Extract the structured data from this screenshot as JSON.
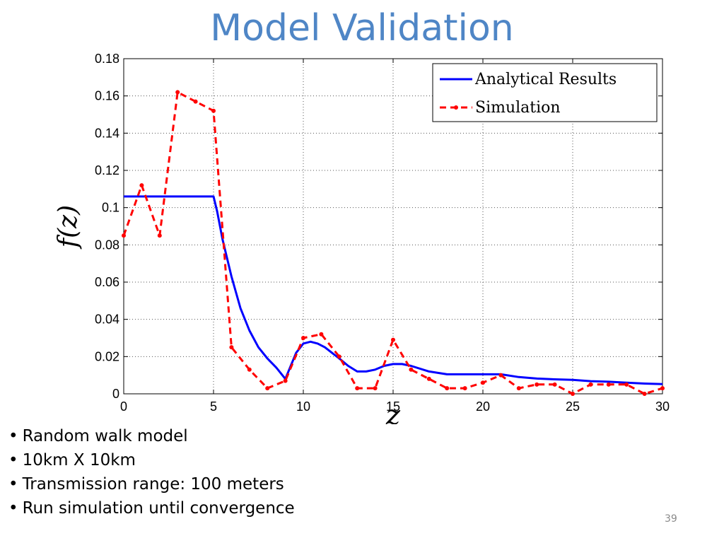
{
  "slide": {
    "title": "Model Validation",
    "bullets": [
      "Random walk model",
      "10km X 10km",
      "Transmission range: 100 meters",
      "Run simulation until convergence"
    ],
    "page_number": "39"
  },
  "colors": {
    "title": "#4f86c6",
    "analytical": "#0000ff",
    "simulation": "#ff0000"
  },
  "chart_data": {
    "type": "line",
    "xlabel": "z",
    "ylabel": "f(z)",
    "xlim": [
      0,
      30
    ],
    "ylim": [
      0,
      0.18
    ],
    "xticks": [
      0,
      5,
      10,
      15,
      20,
      25,
      30
    ],
    "yticks": [
      0,
      0.02,
      0.04,
      0.06,
      0.08,
      0.1,
      0.12,
      0.14,
      0.16,
      0.18
    ],
    "xtick_labels": [
      "0",
      "5",
      "10",
      "15",
      "20",
      "25",
      "30"
    ],
    "ytick_labels": [
      "0",
      "0.02",
      "0.04",
      "0.06",
      "0.08",
      "0.1",
      "0.12",
      "0.14",
      "0.16",
      "0.18"
    ],
    "grid": true,
    "legend_position": "top-right",
    "series": [
      {
        "name": "Analytical Results",
        "style": "solid",
        "x": [
          0,
          5,
          5.2,
          5.5,
          6,
          6.5,
          7,
          7.5,
          8,
          8.5,
          9,
          9.3,
          9.6,
          10,
          10.4,
          10.8,
          11.2,
          11.6,
          12,
          12.5,
          13,
          13.5,
          14,
          14.5,
          15,
          15.5,
          16,
          17,
          18,
          19,
          20,
          21,
          22,
          23,
          24,
          25,
          26,
          27,
          28,
          29,
          30
        ],
        "y": [
          0.106,
          0.106,
          0.098,
          0.083,
          0.063,
          0.046,
          0.034,
          0.025,
          0.019,
          0.014,
          0.008,
          0.015,
          0.022,
          0.027,
          0.028,
          0.027,
          0.025,
          0.022,
          0.019,
          0.015,
          0.012,
          0.012,
          0.013,
          0.015,
          0.016,
          0.016,
          0.015,
          0.012,
          0.0105,
          0.0105,
          0.0105,
          0.0105,
          0.009,
          0.0082,
          0.0078,
          0.0075,
          0.0068,
          0.0065,
          0.006,
          0.0055,
          0.0052
        ]
      },
      {
        "name": "Simulation",
        "style": "dashed",
        "markers": true,
        "x": [
          0,
          1,
          2,
          3,
          4,
          5,
          6,
          7,
          8,
          9,
          10,
          11,
          12,
          13,
          14,
          15,
          16,
          17,
          18,
          19,
          20,
          21,
          22,
          23,
          24,
          25,
          26,
          27,
          28,
          29,
          30
        ],
        "y": [
          0.085,
          0.112,
          0.085,
          0.162,
          0.157,
          0.152,
          0.025,
          0.013,
          0.003,
          0.007,
          0.03,
          0.032,
          0.02,
          0.003,
          0.003,
          0.029,
          0.013,
          0.008,
          0.003,
          0.003,
          0.006,
          0.01,
          0.003,
          0.005,
          0.005,
          0.0,
          0.005,
          0.005,
          0.005,
          0.0,
          0.003
        ]
      }
    ]
  }
}
